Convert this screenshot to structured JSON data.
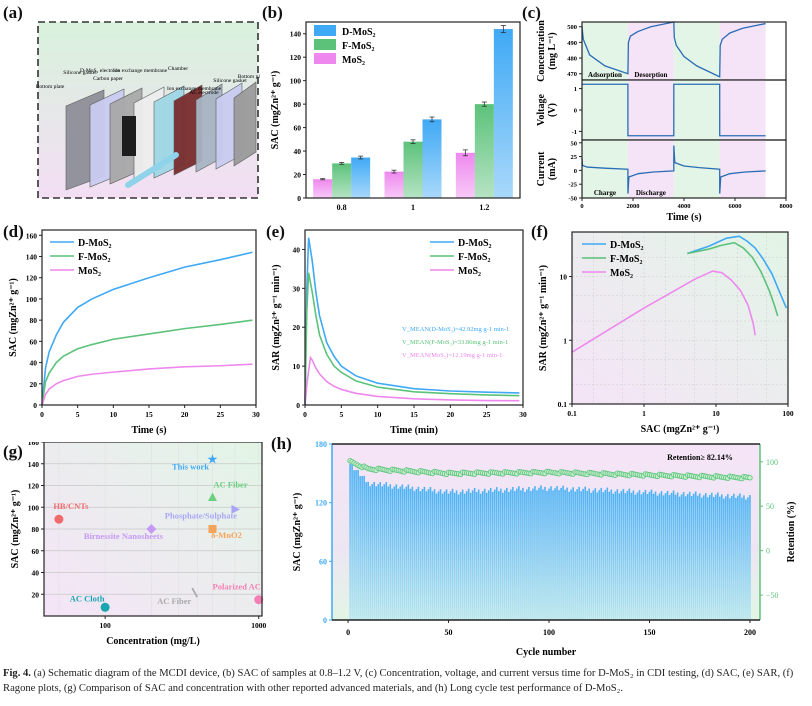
{
  "panels": {
    "a": {
      "label": "(a)",
      "title": "Schematic diagram of the MCDI device",
      "components": [
        "Bottom plate",
        "Silicone gasket",
        "D-MoS2 electrode",
        "Carbon paper",
        "Ion exchange membrane",
        "Chamber",
        "Ion exchange membrane",
        "AC electrode",
        "Silicone gasket",
        "Bottom plate"
      ]
    },
    "b": {
      "label": "(b)"
    },
    "c": {
      "label": "(c)"
    },
    "d": {
      "label": "(d)"
    },
    "e": {
      "label": "(e)"
    },
    "f": {
      "label": "(f)"
    },
    "g": {
      "label": "(g)"
    },
    "h": {
      "label": "(h)"
    }
  },
  "colors": {
    "d_mos2": "#3fa9f5",
    "f_mos2": "#5cc27a",
    "mos2": "#ee88ee",
    "bg_green": "#e2f5e6",
    "bg_pink": "#f5e4f7"
  },
  "chart_data": [
    {
      "id": "b",
      "type": "bar",
      "title": "",
      "xlabel": "Applide voltage (V)",
      "ylabel": "SAC (mg Zn2+ g-1)",
      "categories": [
        "0.8",
        "1",
        "1.2"
      ],
      "ylim": [
        0,
        150
      ],
      "yticks": [
        0,
        20,
        40,
        60,
        80,
        100,
        120,
        140
      ],
      "legend": "top-left",
      "series": [
        {
          "name": "MoS2",
          "values": [
            16,
            22.5,
            38.5
          ],
          "errors": [
            0.5,
            1.2,
            2.5
          ]
        },
        {
          "name": "F-MoS2",
          "values": [
            29.5,
            48,
            80
          ],
          "errors": [
            0.8,
            1.6,
            1.8
          ]
        },
        {
          "name": "D-MoS2",
          "values": [
            34.5,
            67,
            144
          ],
          "errors": [
            1.2,
            2,
            3
          ]
        }
      ]
    },
    {
      "id": "c",
      "type": "line",
      "xlabel": "Time (s)",
      "xlim": [
        0,
        8000
      ],
      "xticks": [
        0,
        2000,
        4000,
        6000,
        8000
      ],
      "regions": [
        {
          "from": 0,
          "to": 1800,
          "label_top": "Adsorption",
          "label_bottom": "Charge",
          "phase": "green"
        },
        {
          "from": 1800,
          "to": 3600,
          "label_top": "Desorption",
          "label_bottom": "Discharge",
          "phase": "pink"
        },
        {
          "from": 3600,
          "to": 5400,
          "phase": "green"
        },
        {
          "from": 5400,
          "to": 7200,
          "phase": "pink"
        }
      ],
      "subplots": [
        {
          "ylabel": "Concentration (mg L-1)",
          "ylim": [
            466,
            503
          ],
          "yticks": [
            470,
            480,
            490,
            500
          ],
          "x": [
            0,
            50,
            300,
            900,
            1800,
            1820,
            1900,
            2200,
            2700,
            3600,
            3620,
            3700,
            4000,
            4500,
            5400,
            5420,
            5500,
            5800,
            6300,
            7200
          ],
          "y": [
            500,
            492,
            482,
            475,
            470,
            490,
            494,
            497,
            500,
            503,
            493,
            488,
            481,
            475,
            468,
            488,
            492,
            496,
            499,
            502
          ]
        },
        {
          "ylabel": "Voltage (V)",
          "ylim": [
            -1.4,
            1.4
          ],
          "yticks": [
            -1,
            0,
            1
          ],
          "x": [
            0,
            1800,
            1801,
            3600,
            3601,
            5400,
            5401,
            7200
          ],
          "y": [
            1.2,
            1.2,
            -1.2,
            -1.2,
            1.2,
            1.2,
            -1.2,
            -1.2
          ]
        },
        {
          "ylabel": "Current (mA)",
          "ylim": [
            -50,
            55
          ],
          "yticks": [
            -50,
            -25,
            0,
            25,
            50
          ],
          "x": [
            0,
            20,
            200,
            900,
            1800,
            1801,
            1840,
            2200,
            2800,
            3600,
            3601,
            3640,
            4000,
            4600,
            5400,
            5401,
            5440,
            5800,
            6400,
            7200
          ],
          "y": [
            22,
            9,
            6,
            4,
            2,
            -42,
            -12,
            -6,
            -3,
            -1,
            45,
            14,
            8,
            5,
            2,
            -42,
            -12,
            -6,
            -3,
            -1
          ]
        }
      ]
    },
    {
      "id": "d",
      "type": "line",
      "xlabel": "Time (s)",
      "ylabel": "SAC (mg Zn2+ g-1)",
      "xlim": [
        0,
        30
      ],
      "ylim": [
        0,
        165
      ],
      "xticks": [
        0,
        5,
        10,
        15,
        20,
        25,
        30
      ],
      "yticks": [
        0,
        20,
        40,
        60,
        80,
        100,
        120,
        140,
        160
      ],
      "legend": "top-left",
      "series": [
        {
          "name": "D-MoS2",
          "x": [
            0,
            0.5,
            1,
            2,
            3,
            5,
            7,
            10,
            15,
            20,
            25,
            29.5
          ],
          "y": [
            0,
            35,
            50,
            66,
            78,
            92,
            100,
            109,
            120,
            130,
            137,
            144
          ]
        },
        {
          "name": "F-MoS2",
          "x": [
            0,
            0.5,
            1,
            2,
            3,
            5,
            7,
            10,
            15,
            20,
            25,
            29.5
          ],
          "y": [
            0,
            22,
            30,
            40,
            46,
            53,
            57,
            62,
            67,
            72,
            76,
            80
          ]
        },
        {
          "name": "MoS2",
          "x": [
            0,
            0.5,
            1,
            2,
            3,
            5,
            7,
            10,
            15,
            20,
            25,
            29.5
          ],
          "y": [
            0,
            10,
            15,
            20,
            23,
            27,
            29,
            31,
            34,
            36,
            37,
            38.5
          ]
        }
      ]
    },
    {
      "id": "e",
      "type": "line",
      "xlabel": "Time (min)",
      "ylabel": "SAR (mg Zn2+ g-1 min-1)",
      "xlim": [
        0,
        30
      ],
      "ylim": [
        0,
        45
      ],
      "xticks": [
        0,
        5,
        10,
        15,
        20,
        25,
        30
      ],
      "yticks": [
        0,
        10,
        20,
        30,
        40
      ],
      "legend": "top-right",
      "annotations": [
        "V MEAN(D-MoS2)=42.92mg g-1 min-1",
        "V MEAN(F-MoS2)=33.86mg g-1 min-1",
        "V MEAN(MoS2)=12.19mg g-1 min-1"
      ],
      "series": [
        {
          "name": "D-MoS2",
          "x": [
            0,
            0.25,
            0.5,
            1,
            1.5,
            2,
            3,
            4,
            5,
            7,
            10,
            15,
            20,
            25,
            29.5
          ],
          "y": [
            0,
            30,
            43,
            37,
            29,
            23,
            16,
            12.5,
            10,
            7.5,
            5.6,
            4.2,
            3.6,
            3.3,
            3.1
          ]
        },
        {
          "name": "F-MoS2",
          "x": [
            0,
            0.25,
            0.5,
            1,
            1.5,
            2,
            3,
            4,
            5,
            7,
            10,
            15,
            20,
            25,
            29.5
          ],
          "y": [
            0,
            24,
            34,
            29,
            23,
            18,
            13,
            10,
            8.4,
            6.2,
            4.6,
            3.4,
            2.9,
            2.6,
            2.4
          ]
        },
        {
          "name": "MoS2",
          "x": [
            0,
            0.3,
            0.75,
            1,
            1.5,
            2,
            3,
            4,
            5,
            7,
            10,
            15,
            20,
            25,
            29.5
          ],
          "y": [
            0,
            6,
            12.2,
            11.5,
            9.5,
            8,
            6,
            4.8,
            4,
            3,
            2.2,
            1.6,
            1.3,
            1.15,
            1.1
          ]
        }
      ]
    },
    {
      "id": "f",
      "type": "line",
      "xscale": "log",
      "yscale": "log",
      "xlabel": "SAC (mg Zn2+ g-1)",
      "ylabel": "SAR (mg Zn2+ g-1 min-1)",
      "xlim": [
        0.1,
        100
      ],
      "ylim": [
        0.1,
        50
      ],
      "xticks": [
        "0.1",
        "1",
        "10",
        "100"
      ],
      "yticks": [
        "0.1",
        "1",
        "10"
      ],
      "legend": "top-left",
      "series": [
        {
          "name": "D-MoS2",
          "x": [
            4,
            8,
            14,
            21,
            27,
            35,
            45,
            60,
            75,
            95
          ],
          "y": [
            23,
            30,
            40,
            43,
            36,
            28,
            19,
            11,
            6,
            3.2
          ]
        },
        {
          "name": "F-MoS2",
          "x": [
            4,
            8,
            12,
            18,
            24,
            32,
            42,
            55,
            65,
            72
          ],
          "y": [
            23,
            27,
            31,
            34,
            28,
            20,
            12,
            6,
            3.5,
            2.4
          ]
        },
        {
          "name": "MoS2",
          "x": [
            0.1,
            1,
            5,
            9,
            12,
            16,
            22,
            28,
            33,
            35
          ],
          "y": [
            0.65,
            3.2,
            9,
            12.2,
            11.5,
            9,
            6,
            3.5,
            1.8,
            1.2
          ]
        }
      ]
    },
    {
      "id": "g",
      "type": "scatter",
      "xscale": "log",
      "xlabel": "Concentration (mg/L)",
      "ylabel": "SAC (mg Zn2+ g-1)",
      "xlim": [
        40,
        1050
      ],
      "ylim": [
        0,
        160
      ],
      "xticks": [
        "100",
        "1000"
      ],
      "yticks": [
        20,
        40,
        60,
        80,
        100,
        120,
        140,
        160
      ],
      "points": [
        {
          "label": "This work",
          "x": 500,
          "y": 144,
          "marker": "star",
          "color": "#3fa9f5"
        },
        {
          "label": "AC Fiber",
          "x": 500,
          "y": 109,
          "marker": "triangle",
          "color": "#6ccf7f"
        },
        {
          "label": "HB/CNTs",
          "x": 50,
          "y": 89,
          "marker": "hexagon",
          "color": "#f06c6c"
        },
        {
          "label": "Phosphate/Sulphate",
          "x": 700,
          "y": 98,
          "marker": "triangle-right",
          "color": "#a9a6f7"
        },
        {
          "label": "Birnessite Nanosheets",
          "x": 200,
          "y": 80,
          "marker": "diamond",
          "color": "#c59af5"
        },
        {
          "label": "δ-MnO2",
          "x": 500,
          "y": 80,
          "marker": "square",
          "color": "#f5a55a"
        },
        {
          "label": "Polarized AC",
          "x": 1000,
          "y": 15,
          "marker": "circle",
          "color": "#f57fb5"
        },
        {
          "label": "AC Fiber",
          "x": 380,
          "y": 22,
          "marker": "line",
          "color": "#aaaaaa"
        },
        {
          "label": "AC Cloth",
          "x": 100,
          "y": 8,
          "marker": "circle",
          "color": "#17a6b0"
        }
      ]
    },
    {
      "id": "h",
      "type": "bar",
      "xlabel": "Cycle number",
      "ylabel": "SAC (mg Zn2+ g-1)",
      "y2label": "Retention (%)",
      "xlim": [
        -8,
        205
      ],
      "ylim": [
        0,
        180
      ],
      "y2lim": [
        -78,
        120
      ],
      "xticks": [
        0,
        50,
        100,
        150,
        200
      ],
      "yticks": [
        0,
        60,
        120,
        180
      ],
      "y2ticks": [
        -50,
        0,
        50,
        100
      ],
      "annotation": "Retention≥ 82.14%",
      "series": [
        {
          "name": "SAC",
          "summary": {
            "start": 160,
            "cycle10": 140,
            "cycle50": 131,
            "cycle100": 135,
            "cycle200": 126
          }
        },
        {
          "name": "Retention",
          "summary": {
            "start": 100,
            "cycle10": 92,
            "cycle50": 87,
            "cycle100": 88,
            "cycle200": 82
          }
        }
      ]
    }
  ],
  "caption": {
    "fig_label": "Fig. 4.",
    "text": " (a) Schematic diagram of the MCDI device, (b) SAC of samples at 0.8–1.2 V, (c) Concentration, voltage, and current versus time for D-MoS₂ in CDI testing, (d) SAC, (e) SAR, (f) Ragone plots, (g) Comparison of SAC and concentration with other reported advanced materials, and (h) Long cycle test performance of D-MoS₂."
  }
}
